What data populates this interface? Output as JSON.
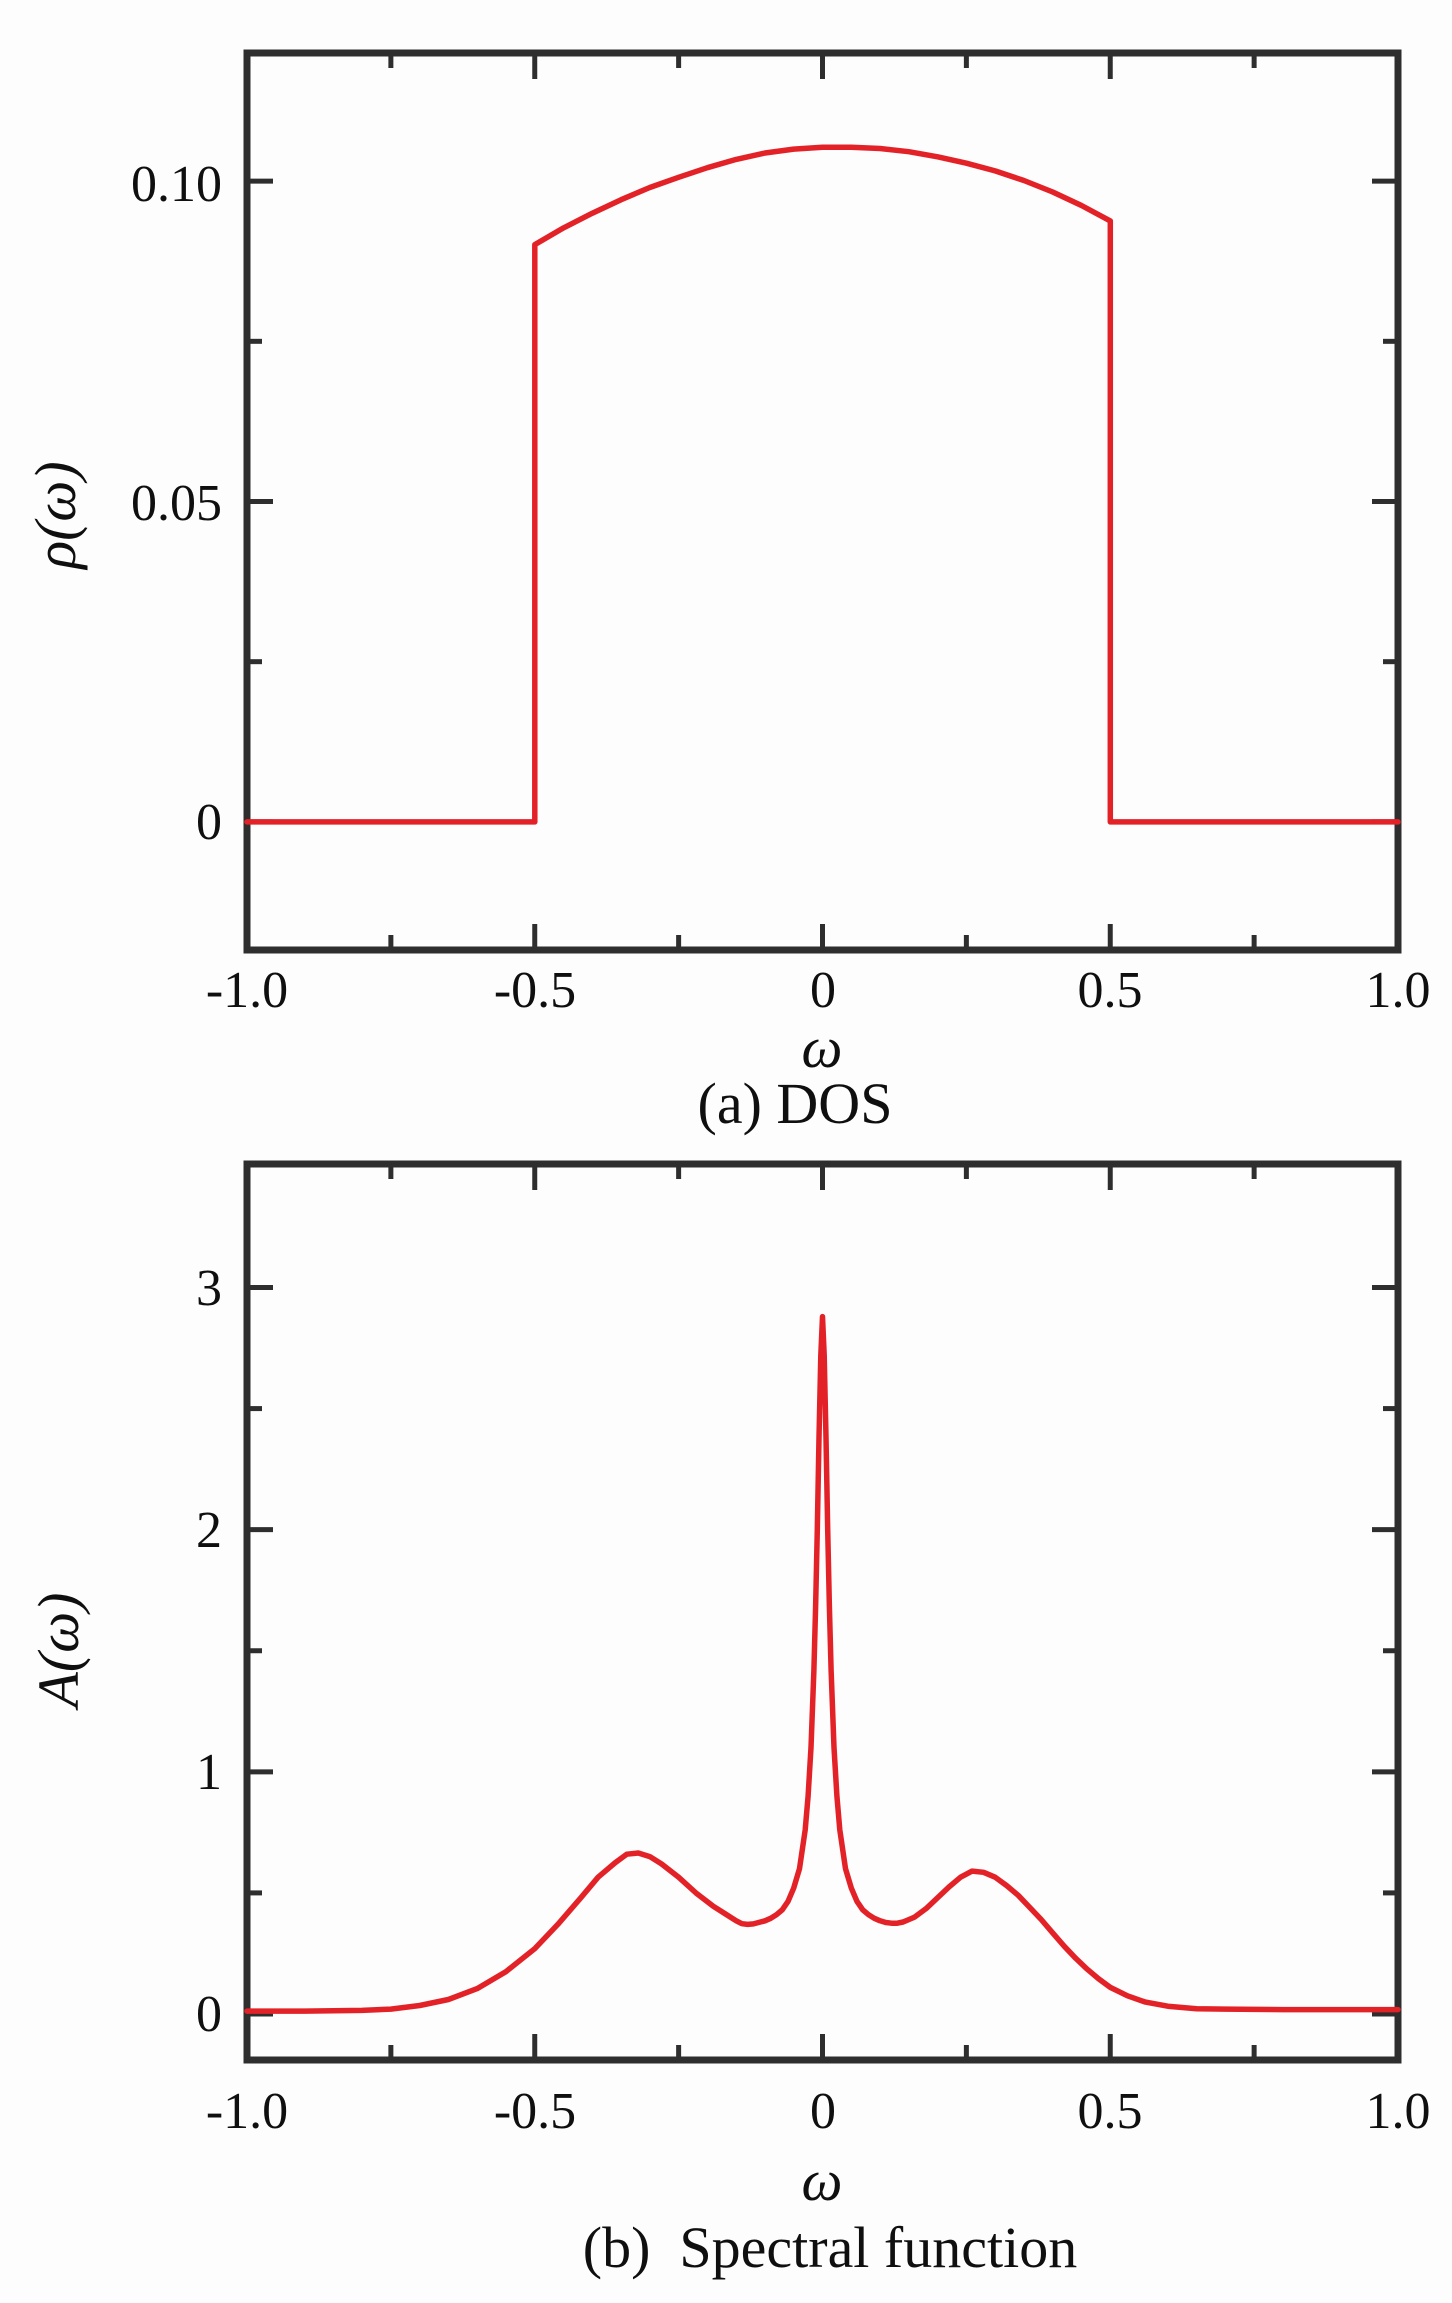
{
  "figure": {
    "background": "#fdfdfd",
    "axis_color": "#2e2e2e",
    "text_color": "#0f0f0f",
    "curve_color": "#e32228"
  },
  "chart_data": [
    {
      "type": "line",
      "title": "(a) DOS",
      "xlabel": "ω",
      "ylabel": "ρ(ω)",
      "xlim": [
        -1.0,
        1.0
      ],
      "ylim": [
        -0.02,
        0.12
      ],
      "grid": false,
      "legend": "none",
      "x_major_ticks": [
        -1.0,
        -0.5,
        0,
        0.5,
        1.0
      ],
      "x_minor_ticks": [
        -0.75,
        -0.25,
        0.25,
        0.75
      ],
      "x_tick_labels": [
        "-1.0",
        "-0.5",
        "0",
        "0.5",
        "1.0"
      ],
      "y_major_ticks": [
        0,
        0.05,
        0.1
      ],
      "y_minor_ticks": [
        0.025,
        0.075
      ],
      "y_tick_labels": [
        "0",
        "0.05",
        "0.10"
      ],
      "series": [
        {
          "name": "ρ(ω)",
          "color": "#e32228",
          "points": [
            [
              -1.0,
              0
            ],
            [
              -0.5,
              0
            ],
            [
              -0.5,
              0.0901
            ],
            [
              -0.45,
              0.0927
            ],
            [
              -0.4,
              0.095
            ],
            [
              -0.35,
              0.0971
            ],
            [
              -0.3,
              0.099
            ],
            [
              -0.25,
              0.1006
            ],
            [
              -0.2,
              0.1021
            ],
            [
              -0.15,
              0.1034
            ],
            [
              -0.1,
              0.1044
            ],
            [
              -0.05,
              0.105
            ],
            [
              0,
              0.1053
            ],
            [
              0.05,
              0.1053
            ],
            [
              0.1,
              0.1051
            ],
            [
              0.15,
              0.1046
            ],
            [
              0.2,
              0.1038
            ],
            [
              0.25,
              0.1028
            ],
            [
              0.3,
              0.1016
            ],
            [
              0.35,
              0.1001
            ],
            [
              0.4,
              0.0983
            ],
            [
              0.45,
              0.0962
            ],
            [
              0.5,
              0.0938
            ],
            [
              0.5,
              0
            ],
            [
              1.0,
              0
            ]
          ]
        }
      ]
    },
    {
      "type": "line",
      "title": "(b)  Spectral function",
      "xlabel": "ω",
      "ylabel": "A(ω)",
      "xlim": [
        -1.0,
        1.0
      ],
      "ylim": [
        -0.19,
        3.51
      ],
      "grid": false,
      "legend": "none",
      "x_major_ticks": [
        -1.0,
        -0.5,
        0,
        0.5,
        1.0
      ],
      "x_minor_ticks": [
        -0.75,
        -0.25,
        0.25,
        0.75
      ],
      "x_tick_labels": [
        "-1.0",
        "-0.5",
        "0",
        "0.5",
        "1.0"
      ],
      "y_major_ticks": [
        0,
        1,
        2,
        3
      ],
      "y_minor_ticks": [
        0.5,
        1.5,
        2.5
      ],
      "y_tick_labels": [
        "0",
        "1",
        "2",
        "3"
      ],
      "series": [
        {
          "name": "A(ω)",
          "color": "#e32228",
          "points": [
            [
              -1.0,
              0.012
            ],
            [
              -0.9,
              0.012
            ],
            [
              -0.8,
              0.015
            ],
            [
              -0.75,
              0.02
            ],
            [
              -0.7,
              0.035
            ],
            [
              -0.65,
              0.06
            ],
            [
              -0.6,
              0.105
            ],
            [
              -0.55,
              0.175
            ],
            [
              -0.5,
              0.27
            ],
            [
              -0.46,
              0.37
            ],
            [
              -0.42,
              0.48
            ],
            [
              -0.39,
              0.565
            ],
            [
              -0.36,
              0.625
            ],
            [
              -0.34,
              0.66
            ],
            [
              -0.32,
              0.665
            ],
            [
              -0.3,
              0.65
            ],
            [
              -0.28,
              0.62
            ],
            [
              -0.25,
              0.565
            ],
            [
              -0.22,
              0.5
            ],
            [
              -0.19,
              0.445
            ],
            [
              -0.17,
              0.415
            ],
            [
              -0.15,
              0.385
            ],
            [
              -0.14,
              0.373
            ],
            [
              -0.13,
              0.37
            ],
            [
              -0.12,
              0.372
            ],
            [
              -0.1,
              0.385
            ],
            [
              -0.09,
              0.395
            ],
            [
              -0.08,
              0.41
            ],
            [
              -0.07,
              0.43
            ],
            [
              -0.06,
              0.465
            ],
            [
              -0.05,
              0.52
            ],
            [
              -0.04,
              0.6
            ],
            [
              -0.03,
              0.76
            ],
            [
              -0.025,
              0.9
            ],
            [
              -0.02,
              1.1
            ],
            [
              -0.015,
              1.42
            ],
            [
              -0.012,
              1.68
            ],
            [
              -0.009,
              2.0
            ],
            [
              -0.006,
              2.38
            ],
            [
              -0.003,
              2.72
            ],
            [
              0,
              2.88
            ],
            [
              0.003,
              2.72
            ],
            [
              0.006,
              2.38
            ],
            [
              0.009,
              2.0
            ],
            [
              0.012,
              1.68
            ],
            [
              0.015,
              1.42
            ],
            [
              0.02,
              1.1
            ],
            [
              0.025,
              0.9
            ],
            [
              0.03,
              0.76
            ],
            [
              0.04,
              0.6
            ],
            [
              0.05,
              0.52
            ],
            [
              0.06,
              0.465
            ],
            [
              0.07,
              0.43
            ],
            [
              0.08,
              0.41
            ],
            [
              0.09,
              0.395
            ],
            [
              0.1,
              0.385
            ],
            [
              0.11,
              0.378
            ],
            [
              0.12,
              0.375
            ],
            [
              0.13,
              0.375
            ],
            [
              0.14,
              0.38
            ],
            [
              0.16,
              0.4
            ],
            [
              0.18,
              0.435
            ],
            [
              0.2,
              0.48
            ],
            [
              0.22,
              0.525
            ],
            [
              0.24,
              0.565
            ],
            [
              0.26,
              0.59
            ],
            [
              0.28,
              0.585
            ],
            [
              0.3,
              0.565
            ],
            [
              0.32,
              0.53
            ],
            [
              0.34,
              0.49
            ],
            [
              0.36,
              0.44
            ],
            [
              0.38,
              0.39
            ],
            [
              0.4,
              0.335
            ],
            [
              0.42,
              0.28
            ],
            [
              0.44,
              0.23
            ],
            [
              0.46,
              0.185
            ],
            [
              0.48,
              0.145
            ],
            [
              0.5,
              0.11
            ],
            [
              0.53,
              0.075
            ],
            [
              0.56,
              0.05
            ],
            [
              0.6,
              0.032
            ],
            [
              0.65,
              0.022
            ],
            [
              0.7,
              0.02
            ],
            [
              0.8,
              0.018
            ],
            [
              0.9,
              0.018
            ],
            [
              1.0,
              0.018
            ]
          ]
        }
      ]
    }
  ]
}
